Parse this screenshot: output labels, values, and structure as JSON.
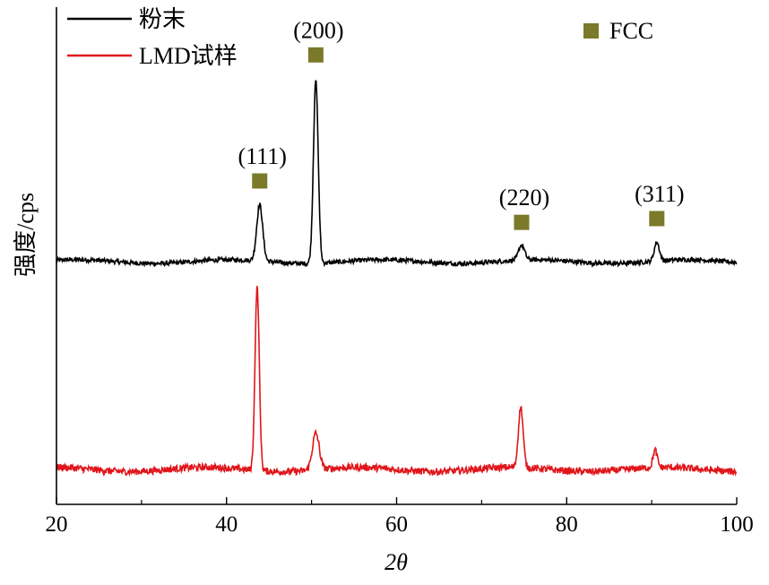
{
  "chart_data": {
    "type": "line",
    "title": "",
    "xlabel": "2θ",
    "ylabel": "强度/cps",
    "xlim": [
      20,
      100
    ],
    "x_ticks": [
      20,
      40,
      60,
      80,
      100
    ],
    "y_ticks_labeled": false,
    "grid": false,
    "legend": {
      "placement": "top-left",
      "entries": [
        "粉末",
        "LMD试样"
      ]
    },
    "marker_legend": {
      "placement": "top-right",
      "label": "FCC",
      "color": "#7a7a2a"
    },
    "series": [
      {
        "name": "粉末",
        "color": "#000000",
        "baseline": 0.0,
        "noise": 0.012,
        "peaks": [
          {
            "x": 43.9,
            "height": 0.3,
            "width": 0.35
          },
          {
            "x": 50.5,
            "height": 0.97,
            "width": 0.28
          },
          {
            "x": 74.7,
            "height": 0.08,
            "width": 0.35
          },
          {
            "x": 90.6,
            "height": 0.1,
            "width": 0.3
          }
        ]
      },
      {
        "name": "LMD试样",
        "color": "#e0161b",
        "baseline": 0.0,
        "noise": 0.016,
        "peaks": [
          {
            "x": 43.6,
            "height": 0.85,
            "width": 0.25
          },
          {
            "x": 50.5,
            "height": 0.17,
            "width": 0.4
          },
          {
            "x": 74.6,
            "height": 0.28,
            "width": 0.28
          },
          {
            "x": 90.4,
            "height": 0.08,
            "width": 0.25
          }
        ]
      }
    ],
    "annotations": [
      {
        "label": "(111)",
        "x": 43.9
      },
      {
        "label": "(200)",
        "x": 50.5
      },
      {
        "label": "(220)",
        "x": 74.7
      },
      {
        "label": "(311)",
        "x": 90.6
      }
    ]
  }
}
